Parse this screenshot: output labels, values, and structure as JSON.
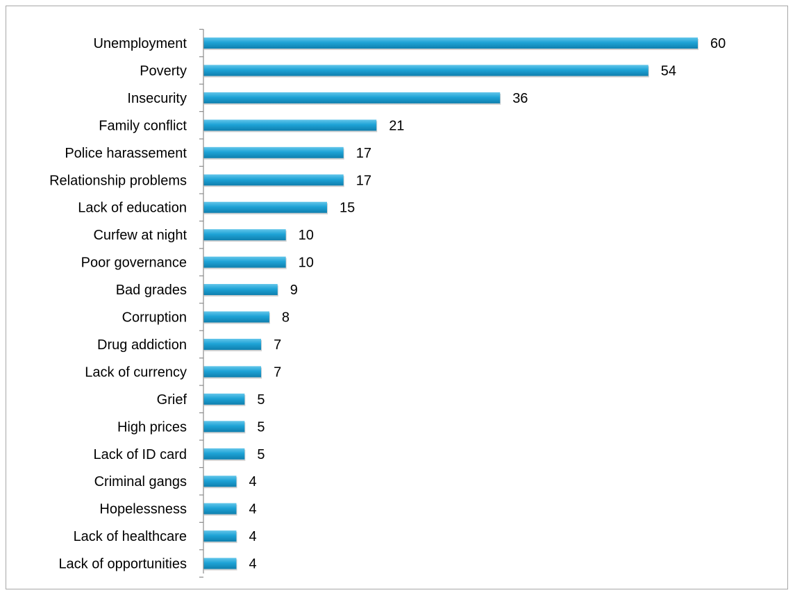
{
  "chart_data": {
    "type": "bar",
    "orientation": "horizontal",
    "title": "",
    "xlabel": "",
    "ylabel": "",
    "categories": [
      "Unemployment",
      "Poverty",
      "Insecurity",
      "Family conflict",
      "Police harassement",
      "Relationship problems",
      "Lack of education",
      "Curfew at night",
      "Poor governance",
      "Bad grades",
      "Corruption",
      "Drug addiction",
      "Lack of currency",
      "Grief",
      "High prices",
      "Lack of ID card",
      "Criminal gangs",
      "Hopelessness",
      "Lack of healthcare",
      "Lack of opportunities"
    ],
    "values": [
      60,
      54,
      36,
      21,
      17,
      17,
      15,
      10,
      10,
      9,
      8,
      7,
      7,
      5,
      5,
      5,
      4,
      4,
      4,
      4
    ],
    "xlim": [
      0,
      60
    ],
    "grid": false,
    "legend": "none",
    "data_labels": true,
    "bar_color": "#1ea3d6",
    "bar_color_light": "#63c6ea",
    "bar_color_dark": "#0f7fae",
    "axis_color": "#8c8c8c",
    "frame_color": "#a6a6a6"
  }
}
